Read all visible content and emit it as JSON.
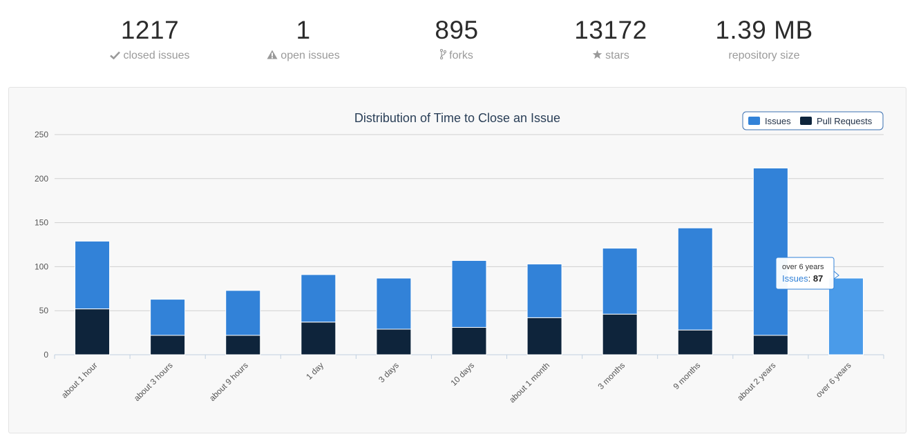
{
  "stats": [
    {
      "value": "1217",
      "label": "closed issues",
      "icon": "check-icon"
    },
    {
      "value": "1",
      "label": "open issues",
      "icon": "warning-icon"
    },
    {
      "value": "895",
      "label": "forks",
      "icon": "fork-icon"
    },
    {
      "value": "13172",
      "label": "stars",
      "icon": "star-icon"
    },
    {
      "value": "1.39 MB",
      "label": "repository size",
      "icon": ""
    }
  ],
  "colors": {
    "issues": "#3282d8",
    "pull_requests": "#0e243b",
    "highlight": "#4a9be9"
  },
  "chart_data": {
    "type": "bar",
    "stacked": true,
    "title": "Distribution of Time to Close an Issue",
    "xlabel": "",
    "ylabel": "",
    "ylim": [
      0,
      250
    ],
    "yticks": [
      0,
      50,
      100,
      150,
      200,
      250
    ],
    "grid": true,
    "legend_position": "top-right",
    "categories": [
      "about 1 hour",
      "about 3 hours",
      "about 9 hours",
      "1 day",
      "3 days",
      "10 days",
      "about 1 month",
      "3 months",
      "9 months",
      "about 2 years",
      "over 6 years"
    ],
    "series": [
      {
        "name": "Issues",
        "values": [
          77,
          41,
          51,
          54,
          58,
          76,
          61,
          75,
          116,
          190,
          87
        ]
      },
      {
        "name": "Pull Requests",
        "values": [
          52,
          22,
          22,
          37,
          29,
          31,
          42,
          46,
          28,
          22,
          0
        ]
      }
    ],
    "tooltip": {
      "category": "over 6 years",
      "series": "Issues",
      "value": "87"
    }
  }
}
